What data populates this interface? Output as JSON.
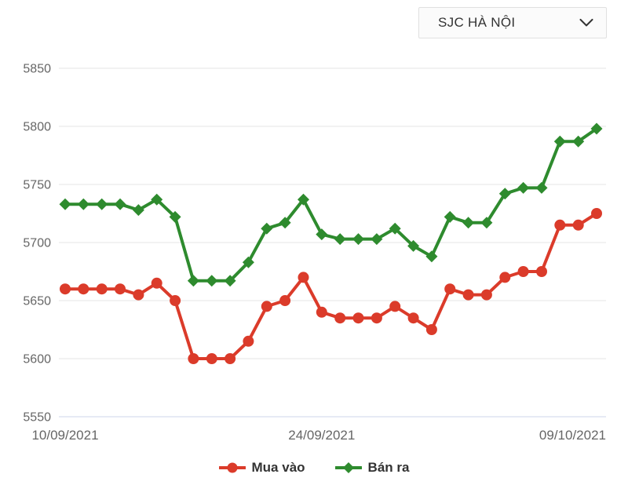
{
  "dropdown": {
    "selected_option": "SJC HÀ NỘI"
  },
  "chart_data": {
    "type": "line",
    "title": "",
    "xlabel": "",
    "ylabel": "",
    "x_count": 30,
    "xticks": [
      {
        "index": 0,
        "label": "10/09/2021"
      },
      {
        "index": 14,
        "label": "24/09/2021"
      },
      {
        "index": 29,
        "label": "09/10/2021"
      }
    ],
    "yticks": [
      5550,
      5600,
      5650,
      5700,
      5750,
      5800,
      5850
    ],
    "ylim": [
      5550,
      5850
    ],
    "grid": "horizontal",
    "legend_position": "bottom",
    "series": [
      {
        "name": "Mua vào",
        "color": "#db3b2a",
        "marker": "circle",
        "values": [
          5660,
          5660,
          5660,
          5660,
          5655,
          5665,
          5650,
          5600,
          5600,
          5600,
          5615,
          5645,
          5650,
          5670,
          5640,
          5635,
          5635,
          5635,
          5645,
          5635,
          5625,
          5660,
          5655,
          5655,
          5670,
          5675,
          5675,
          5715,
          5715,
          5725
        ]
      },
      {
        "name": "Bán ra",
        "color": "#2e8b2e",
        "marker": "diamond",
        "values": [
          5733,
          5733,
          5733,
          5733,
          5728,
          5737,
          5722,
          5667,
          5667,
          5667,
          5683,
          5712,
          5717,
          5737,
          5707,
          5703,
          5703,
          5703,
          5712,
          5697,
          5688,
          5722,
          5717,
          5717,
          5742,
          5747,
          5747,
          5787,
          5787,
          5798
        ]
      }
    ]
  },
  "colors": {
    "grid_line": "#e6e6e6",
    "axis_line": "#ccd6eb",
    "tick_label": "#666666",
    "legend_text": "#333333",
    "dropdown_border": "#e0e0e0",
    "dropdown_bg": "#fbfbfb"
  }
}
